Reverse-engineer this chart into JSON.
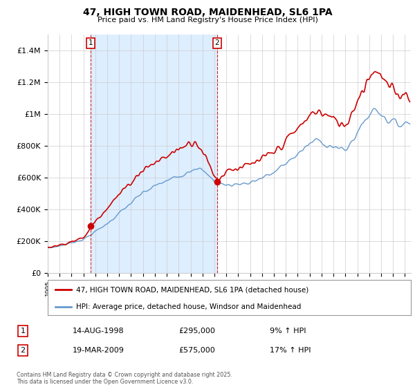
{
  "title": "47, HIGH TOWN ROAD, MAIDENHEAD, SL6 1PA",
  "subtitle": "Price paid vs. HM Land Registry's House Price Index (HPI)",
  "legend_line1": "47, HIGH TOWN ROAD, MAIDENHEAD, SL6 1PA (detached house)",
  "legend_line2": "HPI: Average price, detached house, Windsor and Maidenhead",
  "footer": "Contains HM Land Registry data © Crown copyright and database right 2025.\nThis data is licensed under the Open Government Licence v3.0.",
  "transaction1_label": "1",
  "transaction1_date": "14-AUG-1998",
  "transaction1_price": "£295,000",
  "transaction1_hpi": "9% ↑ HPI",
  "transaction2_label": "2",
  "transaction2_date": "19-MAR-2009",
  "transaction2_price": "£575,000",
  "transaction2_hpi": "17% ↑ HPI",
  "marker1_x": 1998.617,
  "marker1_y": 295000,
  "marker2_x": 2009.217,
  "marker2_y": 575000,
  "line_color_red": "#cc0000",
  "line_color_blue": "#6699cc",
  "marker_box_color": "#cc0000",
  "shade_color": "#ddeeff",
  "ylim": [
    0,
    1500000
  ],
  "xlim_start": 1995.0,
  "xlim_end": 2025.5,
  "yticks": [
    0,
    200000,
    400000,
    600000,
    800000,
    1000000,
    1200000,
    1400000
  ],
  "ytick_labels": [
    "£0",
    "£200K",
    "£400K",
    "£600K",
    "£800K",
    "£1M",
    "£1.2M",
    "£1.4M"
  ],
  "background_color": "#ffffff",
  "grid_color": "#cccccc"
}
